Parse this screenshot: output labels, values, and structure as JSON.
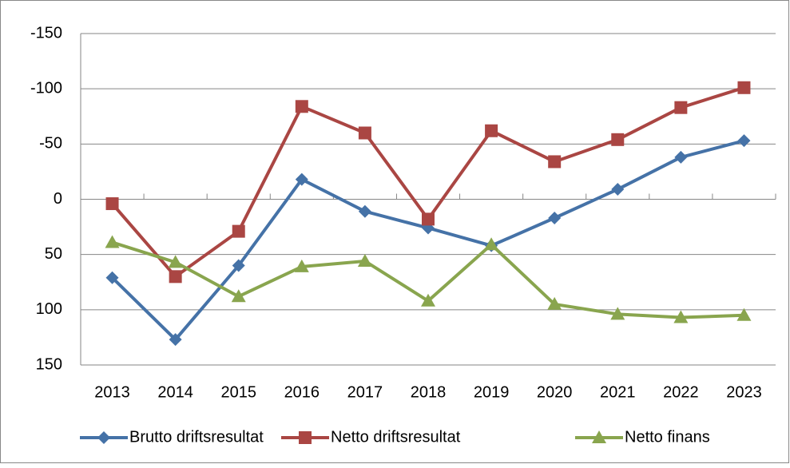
{
  "chart_data": {
    "type": "line",
    "categories": [
      "2013",
      "2014",
      "2015",
      "2016",
      "2017",
      "2018",
      "2019",
      "2020",
      "2021",
      "2022",
      "2023"
    ],
    "series": [
      {
        "name": "Brutto driftsresultat",
        "color": "#4572a7",
        "marker": "diamond",
        "values": [
          71,
          127,
          60,
          -18,
          11,
          26,
          42,
          17,
          -9,
          -38,
          -53
        ]
      },
      {
        "name": "Netto driftsresultat",
        "color": "#aa4643",
        "marker": "square",
        "values": [
          4,
          70,
          29,
          -84,
          -60,
          18,
          -62,
          -34,
          -54,
          -83,
          -101
        ]
      },
      {
        "name": "Netto finans",
        "color": "#89a54e",
        "marker": "triangle",
        "values": [
          39,
          57,
          88,
          61,
          56,
          92,
          41,
          95,
          104,
          107,
          105
        ]
      }
    ],
    "ylim": [
      -150,
      150
    ],
    "y_inverted": true,
    "yticks": [
      -150,
      -100,
      -50,
      0,
      50,
      100,
      150
    ],
    "grid": true,
    "legend": "bottom"
  }
}
